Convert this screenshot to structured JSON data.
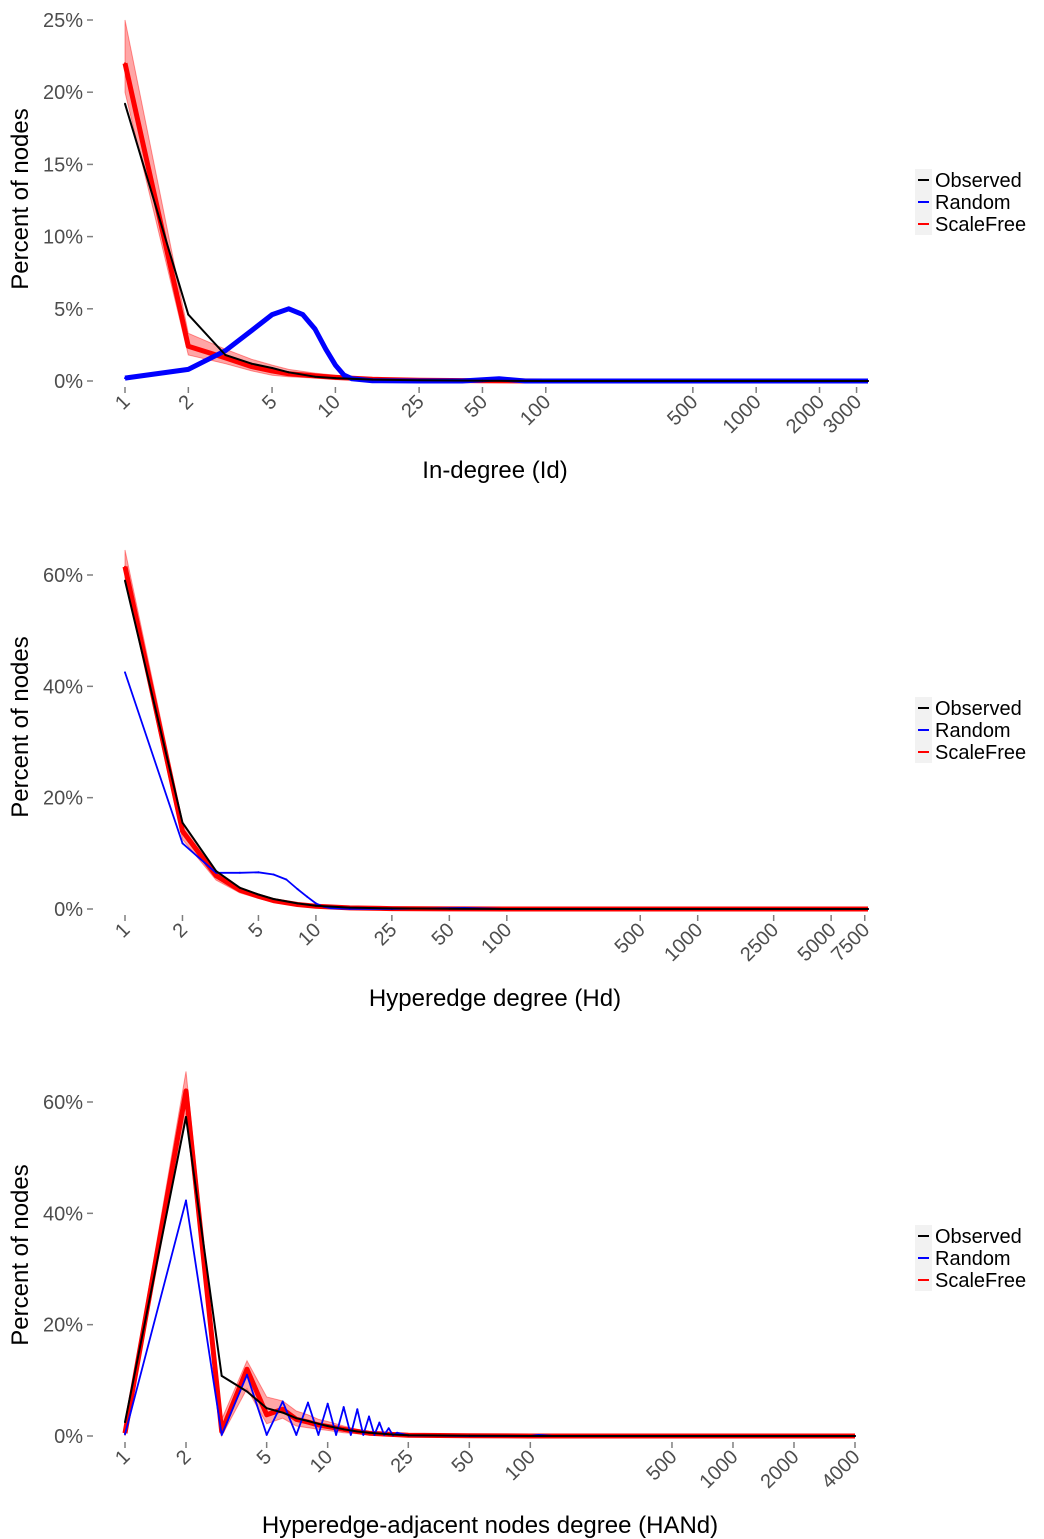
{
  "colors": {
    "Observed": "#000000",
    "Random": "#0000ff",
    "ScaleFree": "#ff0000",
    "tick_text": "#4d4d4d",
    "legend_key_bg": "#f2f2f2"
  },
  "chart_data": [
    {
      "type": "line",
      "title": "",
      "xlabel": "In-degree (Id)",
      "ylabel": "Percent of nodes",
      "x_scale": "log",
      "xlim": [
        1,
        3400
      ],
      "ylim": [
        0,
        25
      ],
      "y_ticks": [
        0,
        5,
        10,
        15,
        20,
        25
      ],
      "y_tick_labels": [
        "0%",
        "5%",
        "10%",
        "15%",
        "20%",
        "25%"
      ],
      "x_ticks": [
        1,
        2,
        5,
        10,
        25,
        50,
        100,
        500,
        1000,
        2000,
        3000
      ],
      "x_tick_labels": [
        "1",
        "2",
        "5",
        "10",
        "25",
        "50",
        "100",
        "500",
        "1000",
        "2000",
        "3000"
      ],
      "grid": false,
      "legend": {
        "position": "right",
        "entries": [
          "Observed",
          "Random",
          "ScaleFree"
        ]
      },
      "series": [
        {
          "name": "Observed",
          "x": [
            1,
            2,
            3,
            4,
            5,
            6,
            8,
            10,
            15,
            25,
            50,
            100,
            3400
          ],
          "y": [
            19.2,
            4.6,
            1.8,
            1.2,
            0.9,
            0.6,
            0.3,
            0.2,
            0.1,
            0.05,
            0.02,
            0,
            0
          ]
        },
        {
          "name": "Random",
          "x": [
            1,
            2,
            3,
            4,
            5,
            6,
            7,
            8,
            9,
            10,
            11,
            12,
            15,
            25,
            40,
            60,
            80,
            100,
            3400
          ],
          "y": [
            0.2,
            0.8,
            2.1,
            3.5,
            4.6,
            5.0,
            4.6,
            3.6,
            2.2,
            1.1,
            0.4,
            0.15,
            0.02,
            0,
            0,
            0.15,
            0,
            0,
            0
          ]
        },
        {
          "name": "ScaleFree",
          "x": [
            1,
            2,
            3,
            4,
            5,
            6,
            8,
            10,
            15,
            25,
            50,
            100,
            3400
          ],
          "y": [
            22.0,
            2.4,
            1.6,
            1.0,
            0.7,
            0.5,
            0.35,
            0.25,
            0.12,
            0.05,
            0.02,
            0,
            0
          ],
          "band": [
            [
              20,
              25
            ],
            [
              1.8,
              3.3
            ],
            [
              1.2,
              2.2
            ],
            [
              0.7,
              1.5
            ],
            [
              0.4,
              1.1
            ],
            [
              0.3,
              0.8
            ],
            [
              0.2,
              0.55
            ],
            [
              0.1,
              0.4
            ],
            [
              0.05,
              0.2
            ],
            [
              0,
              0.1
            ],
            [
              0,
              0.05
            ],
            [
              0,
              0
            ],
            [
              0,
              0
            ]
          ]
        }
      ]
    },
    {
      "type": "line",
      "title": "",
      "xlabel": "Hyperedge degree (Hd)",
      "ylabel": "Percent of nodes",
      "x_scale": "log",
      "xlim": [
        1,
        7800
      ],
      "ylim": [
        0,
        60
      ],
      "y_ticks": [
        0,
        20,
        40,
        60
      ],
      "y_tick_labels": [
        "0%",
        "20%",
        "40%",
        "60%"
      ],
      "x_ticks": [
        1,
        2,
        5,
        10,
        25,
        50,
        100,
        500,
        1000,
        2500,
        5000,
        7500
      ],
      "x_tick_labels": [
        "1",
        "2",
        "5",
        "10",
        "25",
        "50",
        "100",
        "500",
        "1000",
        "2500",
        "5000",
        "7500"
      ],
      "grid": false,
      "legend": {
        "position": "right",
        "entries": [
          "Observed",
          "Random",
          "ScaleFree"
        ]
      },
      "series": [
        {
          "name": "Observed",
          "x": [
            1,
            2,
            3,
            4,
            5,
            6,
            8,
            10,
            15,
            25,
            50,
            100,
            7800
          ],
          "y": [
            59.0,
            15.5,
            6.8,
            3.8,
            2.6,
            1.8,
            1.0,
            0.6,
            0.25,
            0.1,
            0.03,
            0,
            0
          ]
        },
        {
          "name": "Random",
          "x": [
            1,
            2,
            3,
            4,
            5,
            6,
            7,
            8,
            9,
            10,
            11,
            12,
            15,
            25,
            60,
            100,
            7800
          ],
          "y": [
            42.5,
            11.8,
            6.5,
            6.5,
            6.6,
            6.2,
            5.3,
            3.6,
            2.2,
            1.0,
            0.4,
            0.15,
            0.02,
            0,
            0.2,
            0,
            0
          ]
        },
        {
          "name": "ScaleFree",
          "x": [
            1,
            2,
            3,
            4,
            5,
            6,
            8,
            10,
            15,
            25,
            50,
            100,
            7800
          ],
          "y": [
            61.5,
            14.0,
            6.0,
            3.4,
            2.3,
            1.5,
            0.8,
            0.5,
            0.2,
            0.08,
            0.02,
            0,
            0
          ],
          "band": [
            [
              59.5,
              64.5
            ],
            [
              12.5,
              15.5
            ],
            [
              5.2,
              6.8
            ],
            [
              2.9,
              3.9
            ],
            [
              1.9,
              2.7
            ],
            [
              1.2,
              1.8
            ],
            [
              0.6,
              1.0
            ],
            [
              0.3,
              0.7
            ],
            [
              0.1,
              0.3
            ],
            [
              0,
              0.15
            ],
            [
              0,
              0.05
            ],
            [
              0,
              0
            ],
            [
              0,
              0
            ]
          ]
        }
      ]
    },
    {
      "type": "line",
      "title": "",
      "xlabel": "Hyperedge-adjacent nodes degree (HANd)",
      "ylabel": "Percent of nodes",
      "x_scale": "log",
      "xlim": [
        1,
        4000
      ],
      "ylim": [
        0,
        60
      ],
      "y_ticks": [
        0,
        20,
        40,
        60
      ],
      "y_tick_labels": [
        "0%",
        "20%",
        "40%",
        "60%"
      ],
      "x_ticks": [
        1,
        2,
        5,
        10,
        25,
        50,
        100,
        500,
        1000,
        2000,
        4000
      ],
      "x_tick_labels": [
        "1",
        "2",
        "5",
        "10",
        "25",
        "50",
        "100",
        "500",
        "1000",
        "2000",
        "4000"
      ],
      "grid": false,
      "legend": {
        "position": "right",
        "entries": [
          "Observed",
          "Random",
          "ScaleFree"
        ]
      },
      "series": [
        {
          "name": "Observed",
          "x": [
            1,
            2,
            3,
            4,
            5,
            6,
            7,
            8,
            9,
            10,
            12,
            14,
            16,
            20,
            25,
            50,
            100,
            4000
          ],
          "y": [
            2.5,
            57.3,
            10.8,
            8.0,
            5.0,
            4.2,
            3.2,
            2.7,
            2.2,
            1.8,
            1.2,
            0.8,
            0.6,
            0.3,
            0.15,
            0.03,
            0,
            0
          ]
        },
        {
          "name": "Random",
          "x": [
            1,
            2,
            3,
            4,
            5,
            6,
            7,
            8,
            9,
            10,
            11,
            12,
            13,
            14,
            15,
            16,
            17,
            18,
            19,
            20,
            21,
            22,
            25,
            50,
            100,
            110,
            130,
            4000
          ],
          "y": [
            0.3,
            42.3,
            0.2,
            11.0,
            0.2,
            6.2,
            0.2,
            6.0,
            0.2,
            5.8,
            0.2,
            5.2,
            0.2,
            4.8,
            0.2,
            3.5,
            0.2,
            2.4,
            0.2,
            1.4,
            0.1,
            0.6,
            0.1,
            0,
            0,
            0.2,
            0,
            0
          ]
        },
        {
          "name": "ScaleFree",
          "x": [
            1,
            2,
            3,
            4,
            5,
            6,
            7,
            8,
            9,
            10,
            12,
            14,
            16,
            20,
            25,
            50,
            100,
            4000
          ],
          "y": [
            0.5,
            62.0,
            0.8,
            12.0,
            3.8,
            4.8,
            3.0,
            2.5,
            2.0,
            1.7,
            1.2,
            0.8,
            0.5,
            0.3,
            0.15,
            0.03,
            0,
            0
          ],
          "band": [
            [
              0,
              1.5
            ],
            [
              58,
              65.5
            ],
            [
              0,
              3
            ],
            [
              8.5,
              13.5
            ],
            [
              2.2,
              7
            ],
            [
              3.2,
              6.3
            ],
            [
              1.8,
              4.5
            ],
            [
              1.5,
              3.8
            ],
            [
              1.2,
              3
            ],
            [
              1,
              2.6
            ],
            [
              0.6,
              1.8
            ],
            [
              0.4,
              1.2
            ],
            [
              0.2,
              0.8
            ],
            [
              0.1,
              0.5
            ],
            [
              0,
              0.3
            ],
            [
              0,
              0.05
            ],
            [
              0,
              0
            ],
            [
              0,
              0
            ]
          ]
        }
      ]
    }
  ]
}
